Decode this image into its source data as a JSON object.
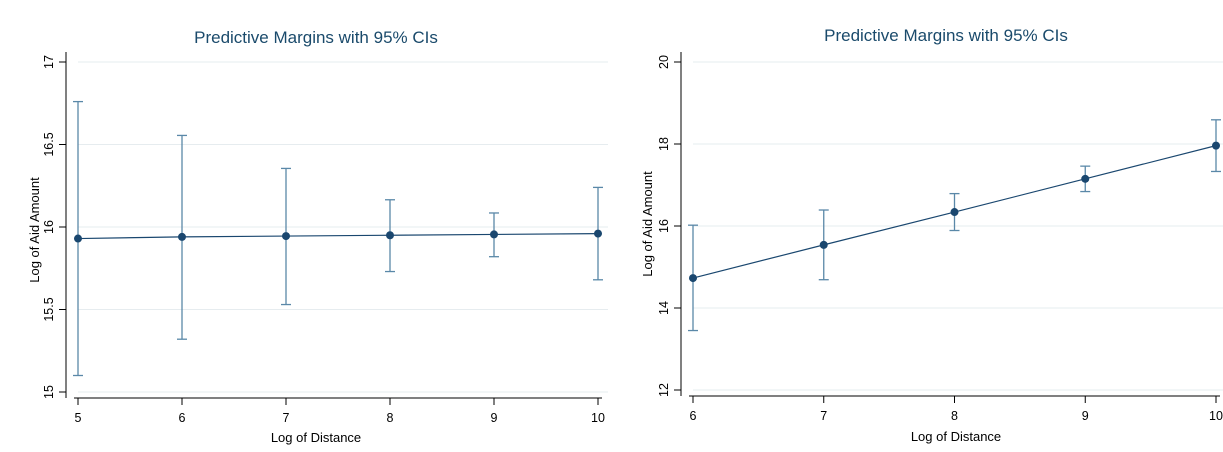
{
  "chart_data": [
    {
      "type": "line",
      "title": "Predictive Margins with 95% CIs",
      "xlabel": "Log of Distance",
      "ylabel": "Log of Aid Amount",
      "xlim": [
        5,
        10
      ],
      "ylim": [
        15,
        17
      ],
      "xticks": [
        5,
        6,
        7,
        8,
        9,
        10
      ],
      "yticks": [
        15,
        15.5,
        16,
        16.5,
        17
      ],
      "yticklabels": [
        "15",
        "15.5",
        "16",
        "16.5",
        "17"
      ],
      "grid": true,
      "series": [
        {
          "x": [
            5,
            6,
            7,
            8,
            9,
            10
          ],
          "values": [
            15.93,
            15.94,
            15.945,
            15.95,
            15.955,
            15.96
          ],
          "ci_low": [
            15.1,
            15.32,
            15.53,
            15.73,
            15.82,
            15.68
          ],
          "ci_high": [
            16.76,
            16.555,
            16.355,
            16.165,
            16.085,
            16.24
          ]
        }
      ],
      "colors": {
        "line": "#1a476f",
        "ci": "#5a88a8",
        "title": "#1a4a6b",
        "grid": "#e6ecef"
      }
    },
    {
      "type": "line",
      "title": "Predictive Margins with 95% CIs",
      "xlabel": "Log of Distance",
      "ylabel": "Log of Aid Amount",
      "xlim": [
        6,
        10
      ],
      "ylim": [
        12,
        20
      ],
      "xticks": [
        6,
        7,
        8,
        9,
        10
      ],
      "yticks": [
        12,
        14,
        16,
        18,
        20
      ],
      "yticklabels": [
        "12",
        "14",
        "16",
        "18",
        "20"
      ],
      "grid": true,
      "series": [
        {
          "x": [
            6,
            7,
            8,
            9,
            10
          ],
          "values": [
            14.73,
            15.54,
            16.34,
            17.15,
            17.96
          ],
          "ci_low": [
            13.45,
            14.69,
            15.89,
            16.84,
            17.33
          ],
          "ci_high": [
            16.02,
            16.39,
            16.79,
            17.46,
            18.59
          ]
        }
      ],
      "colors": {
        "line": "#1a476f",
        "ci": "#5a88a8",
        "title": "#1a4a6b",
        "grid": "#e6ecef"
      }
    }
  ]
}
